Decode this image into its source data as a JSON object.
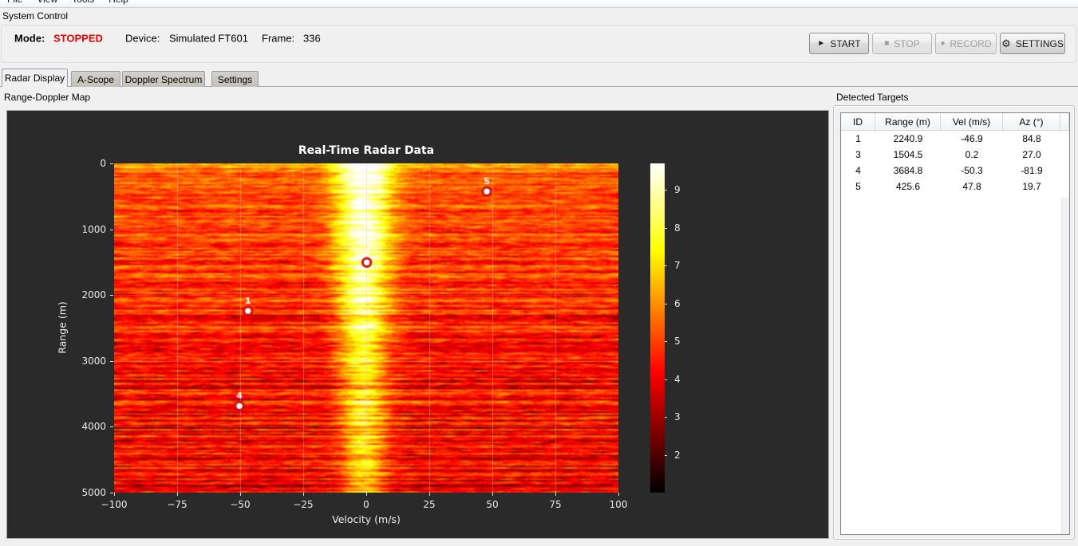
{
  "menu_bar": {
    "items": [
      "File",
      "View",
      "Tools",
      "Help"
    ]
  },
  "system_control": {
    "group_label": "System Control",
    "mode_label": "Mode:",
    "mode_value": "STOPPED",
    "mode_color": "#e60000",
    "device_label": "Device:",
    "device_value": "Simulated FT601",
    "frame_label": "Frame:",
    "frame_value": "336",
    "buttons": [
      {
        "name": "start",
        "glyph": "►",
        "label": "START",
        "enabled": true
      },
      {
        "name": "stop",
        "glyph": "■",
        "label": "STOP",
        "enabled": false
      },
      {
        "name": "record",
        "glyph": "●",
        "label": "RECORD",
        "enabled": false
      },
      {
        "name": "settings",
        "glyph": "⚙",
        "label": "SETTINGS",
        "enabled": true
      }
    ]
  },
  "tabs": [
    {
      "label": "Radar Display",
      "active": true
    },
    {
      "label": "A-Scope",
      "active": false
    },
    {
      "label": "Doppler Spectrum",
      "active": false
    },
    {
      "label": "Settings",
      "active": false
    }
  ],
  "map_section": {
    "group_label": "Range-Doppler Map"
  },
  "targets_panel": {
    "group_label": "Detected Targets",
    "columns": [
      "ID",
      "Range (m)",
      "Vel (m/s)",
      "Az (°)"
    ],
    "rows": [
      [
        "1",
        "2240.9",
        "-46.9",
        "84.8"
      ],
      [
        "3",
        "1504.5",
        "0.2",
        "27.0"
      ],
      [
        "4",
        "3684.8",
        "-50.3",
        "-81.9"
      ],
      [
        "5",
        "425.6",
        "47.8",
        "19.7"
      ]
    ]
  },
  "chart_data": {
    "type": "heatmap",
    "title": "Real-Time Radar Data",
    "xlabel": "Velocity (m/s)",
    "ylabel": "Range (m)",
    "xlim": [
      -100,
      100
    ],
    "ylim": [
      0,
      5000
    ],
    "x_ticks": [
      -100,
      -75,
      -50,
      -25,
      0,
      25,
      50,
      75,
      100
    ],
    "y_ticks": [
      0,
      1000,
      2000,
      3000,
      4000,
      5000
    ],
    "grid": true,
    "background": "#2a2a2a",
    "colormap": "hot",
    "colorbar": {
      "vmin": 1.0,
      "vmax": 9.7,
      "ticks": [
        2,
        3,
        4,
        5,
        6,
        7,
        8,
        9
      ]
    },
    "noise_floor": {
      "intensity_at_min_range": 5.3,
      "intensity_at_max_range": 3.95,
      "texture": "horizontal-streaks"
    },
    "clutter_band": {
      "center_velocity": -1,
      "sigma_velocity_top": 8,
      "sigma_velocity_bottom": 6,
      "amplitude_top": 4.9,
      "amplitude_bottom": 2.6
    },
    "targets": [
      {
        "id": "1",
        "velocity": -46.9,
        "range": 2240.9
      },
      {
        "id": "3",
        "velocity": 0.2,
        "range": 1504.5
      },
      {
        "id": "4",
        "velocity": -50.3,
        "range": 3684.8
      },
      {
        "id": "5",
        "velocity": 47.8,
        "range": 425.6
      }
    ],
    "marker_style": {
      "fill": "#ffffff",
      "ring": "#cf1010"
    }
  }
}
